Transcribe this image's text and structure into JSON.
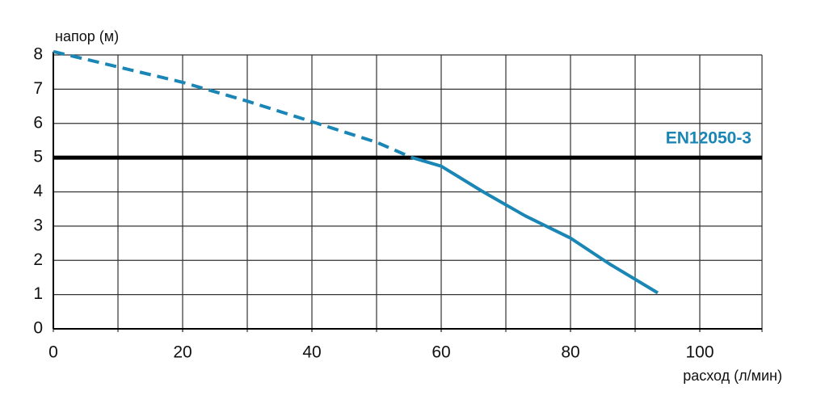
{
  "chart_data": {
    "type": "line",
    "x_label": "расход (л/мин)",
    "y_label": "напор (м)",
    "xlim": [
      0,
      110
    ],
    "ylim": [
      0,
      8
    ],
    "xticks": [
      0,
      20,
      40,
      60,
      80,
      100
    ],
    "yticks": [
      0,
      1,
      2,
      3,
      4,
      5,
      6,
      7,
      8
    ],
    "xgrid": [
      10,
      20,
      30,
      40,
      50,
      60,
      70,
      80,
      90,
      100,
      110
    ],
    "grid": true,
    "reference_line": {
      "value": 5,
      "label": "EN12050-3",
      "color": "#000000",
      "label_color": "#1a86b6"
    },
    "series": [
      {
        "color": "#1a86b6",
        "style": "dashed",
        "x": [
          0,
          10,
          20,
          30,
          40,
          50,
          55.5
        ],
        "values": [
          8.1,
          7.65,
          7.2,
          6.65,
          6.05,
          5.45,
          5.0
        ]
      },
      {
        "color": "#1a86b6",
        "style": "solid",
        "x": [
          55.5,
          60,
          66.5,
          73,
          80,
          86,
          93.5
        ],
        "values": [
          5.0,
          4.75,
          4.0,
          3.3,
          2.65,
          1.9,
          1.05
        ]
      }
    ]
  }
}
